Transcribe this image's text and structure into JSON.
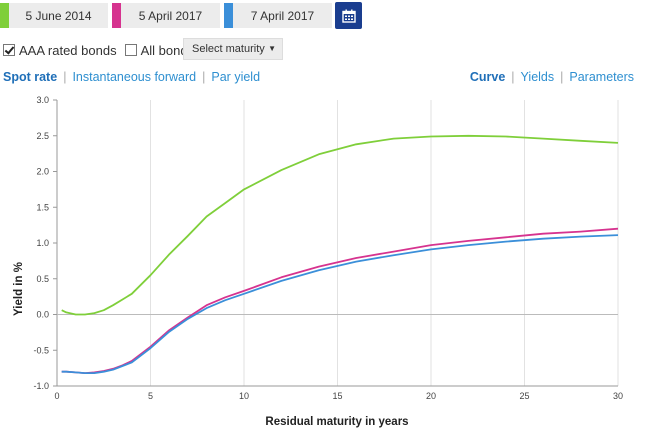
{
  "date_pickers": [
    {
      "label": "5 June 2014",
      "color": "#7fcf3a"
    },
    {
      "label": "5 April 2017",
      "color": "#d6338f"
    },
    {
      "label": "7 April 2017",
      "color": "#3b8fd9"
    }
  ],
  "calendar_button": {
    "icon": "calendar-icon"
  },
  "filters": {
    "aaa_label": "AAA rated bonds",
    "aaa_checked": true,
    "all_label": "All bonds",
    "all_checked": false,
    "maturity_select": "Select maturity"
  },
  "tabs_left": [
    {
      "label": "Spot rate",
      "active": true
    },
    {
      "label": "Instantaneous forward",
      "active": false
    },
    {
      "label": "Par yield",
      "active": false
    }
  ],
  "tabs_right": [
    {
      "label": "Curve",
      "active": true
    },
    {
      "label": "Yields",
      "active": false
    },
    {
      "label": "Parameters",
      "active": false
    }
  ],
  "chart_data": {
    "type": "line",
    "xlabel": "Residual maturity in years",
    "ylabel": "Yield in %",
    "xlim": [
      0,
      30
    ],
    "ylim": [
      -1.0,
      3.0
    ],
    "xticks": [
      0,
      5,
      10,
      15,
      20,
      25,
      30
    ],
    "yticks": [
      -1.0,
      -0.5,
      0.0,
      0.5,
      1.0,
      1.5,
      2.0,
      2.5,
      3.0
    ],
    "grid": "vertical",
    "legend": "none",
    "series": [
      {
        "color": "#7fcf3a",
        "x": [
          0.25,
          0.5,
          1,
          1.5,
          2,
          2.5,
          3,
          3.5,
          4,
          5,
          6,
          7,
          8,
          9,
          10,
          12,
          14,
          16,
          18,
          20,
          22,
          24,
          26,
          28,
          30
        ],
        "y": [
          0.06,
          0.03,
          0.0,
          0.0,
          0.02,
          0.06,
          0.13,
          0.21,
          0.29,
          0.55,
          0.84,
          1.1,
          1.37,
          1.56,
          1.75,
          2.02,
          2.24,
          2.38,
          2.46,
          2.49,
          2.5,
          2.49,
          2.46,
          2.43,
          2.4
        ]
      },
      {
        "color": "#d6338f",
        "x": [
          0.25,
          0.5,
          1,
          1.5,
          2,
          2.5,
          3,
          3.5,
          4,
          5,
          6,
          7,
          8,
          9,
          10,
          12,
          14,
          16,
          18,
          20,
          22,
          24,
          26,
          28,
          30
        ],
        "y": [
          -0.8,
          -0.8,
          -0.81,
          -0.82,
          -0.81,
          -0.79,
          -0.76,
          -0.71,
          -0.65,
          -0.45,
          -0.22,
          -0.04,
          0.13,
          0.24,
          0.33,
          0.52,
          0.67,
          0.79,
          0.88,
          0.97,
          1.03,
          1.08,
          1.13,
          1.16,
          1.2
        ]
      },
      {
        "color": "#3b8fd9",
        "x": [
          0.25,
          0.5,
          1,
          1.5,
          2,
          2.5,
          3,
          3.5,
          4,
          5,
          6,
          7,
          8,
          9,
          10,
          12,
          14,
          16,
          18,
          20,
          22,
          24,
          26,
          28,
          30
        ],
        "y": [
          -0.8,
          -0.8,
          -0.81,
          -0.82,
          -0.82,
          -0.8,
          -0.77,
          -0.72,
          -0.67,
          -0.47,
          -0.24,
          -0.06,
          0.09,
          0.2,
          0.29,
          0.47,
          0.62,
          0.74,
          0.83,
          0.91,
          0.97,
          1.02,
          1.06,
          1.09,
          1.11
        ]
      }
    ]
  }
}
